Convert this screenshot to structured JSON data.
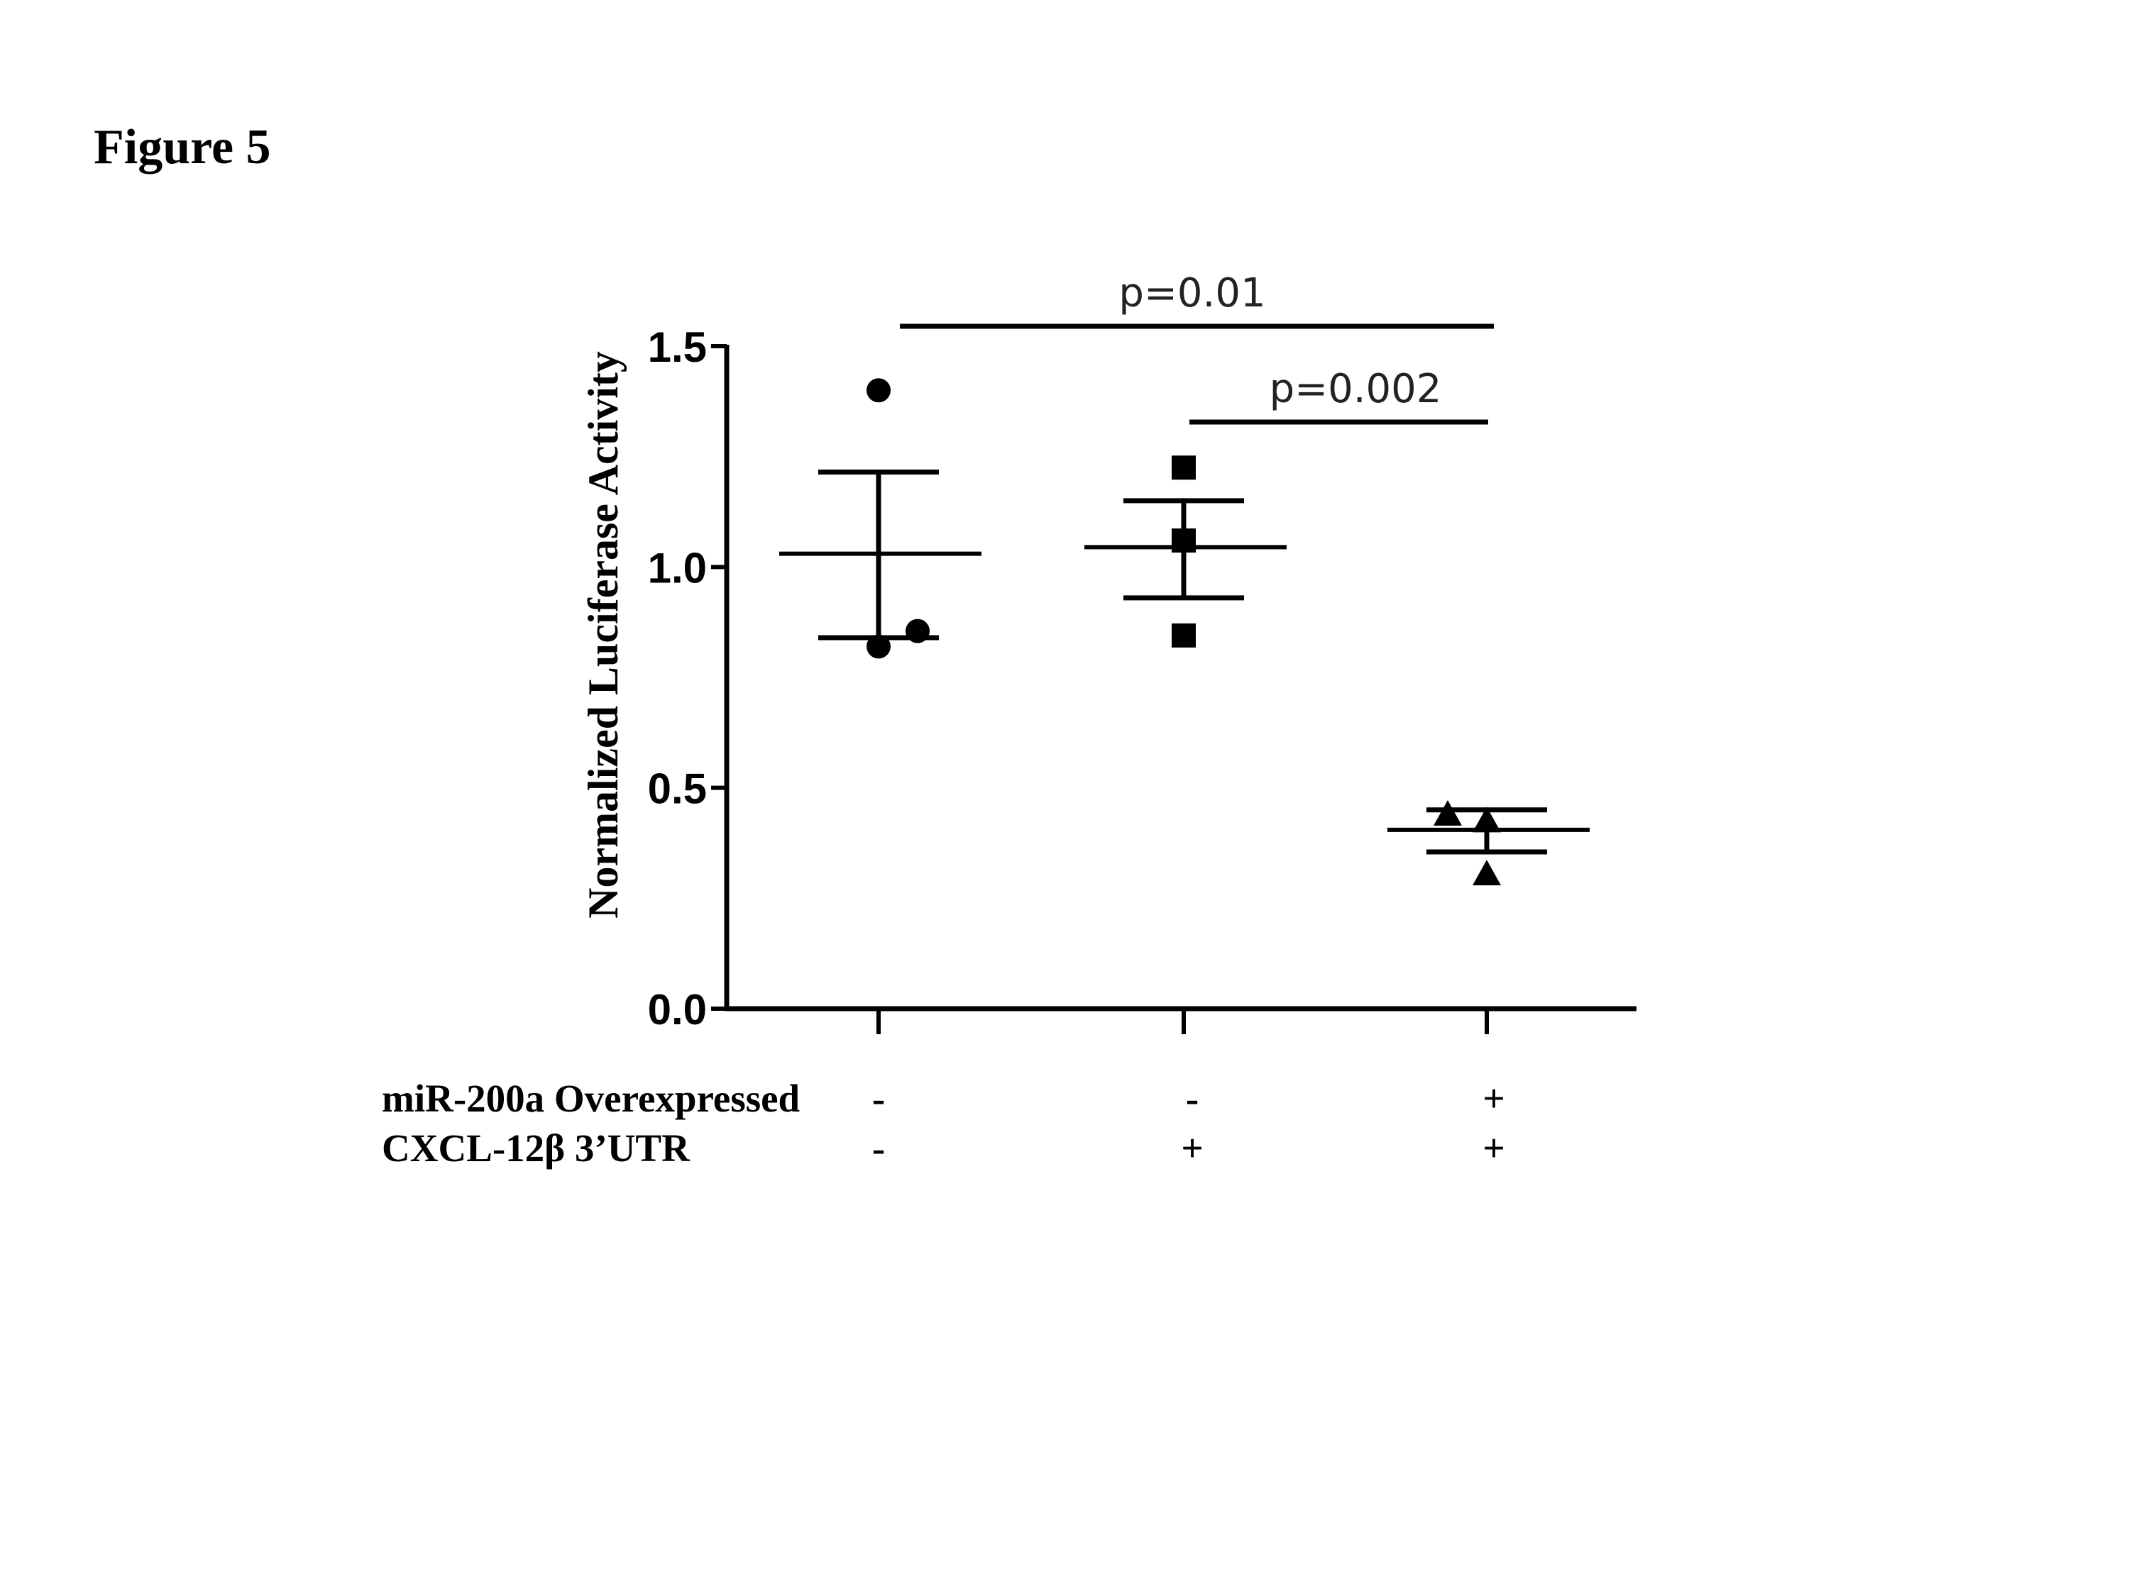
{
  "figure_label": "Figure 5",
  "chart_data": {
    "type": "scatter",
    "ylabel": "Normalized Luciferase Activity",
    "ylim": [
      0.0,
      1.5
    ],
    "yticks": [
      "0.0",
      "0.5",
      "1.0",
      "1.5"
    ],
    "groups": [
      {
        "points": [
          1.4,
          0.82,
          0.855
        ],
        "mean": 1.03,
        "sem_upper": 1.215,
        "sem_lower": 0.84,
        "marker": "circle"
      },
      {
        "points": [
          1.225,
          1.06,
          0.845
        ],
        "mean": 1.045,
        "sem_upper": 1.15,
        "sem_lower": 0.93,
        "marker": "square"
      },
      {
        "points": [
          0.44,
          0.425,
          0.305
        ],
        "mean": 0.405,
        "sem_upper": 0.45,
        "sem_lower": 0.355,
        "marker": "triangle"
      }
    ],
    "significance": [
      {
        "from": 0,
        "to": 2,
        "label": "p=0.01"
      },
      {
        "from": 1,
        "to": 2,
        "label": "p=0.002"
      }
    ],
    "conditions": [
      {
        "label": "miR-200a Overexpressed",
        "values": [
          "-",
          "-",
          "+"
        ]
      },
      {
        "label": "CXCL-12β 3’UTR",
        "values": [
          "-",
          "+",
          "+"
        ]
      }
    ],
    "colors": {
      "ink": "#000000",
      "sig_text": "#222222"
    }
  }
}
